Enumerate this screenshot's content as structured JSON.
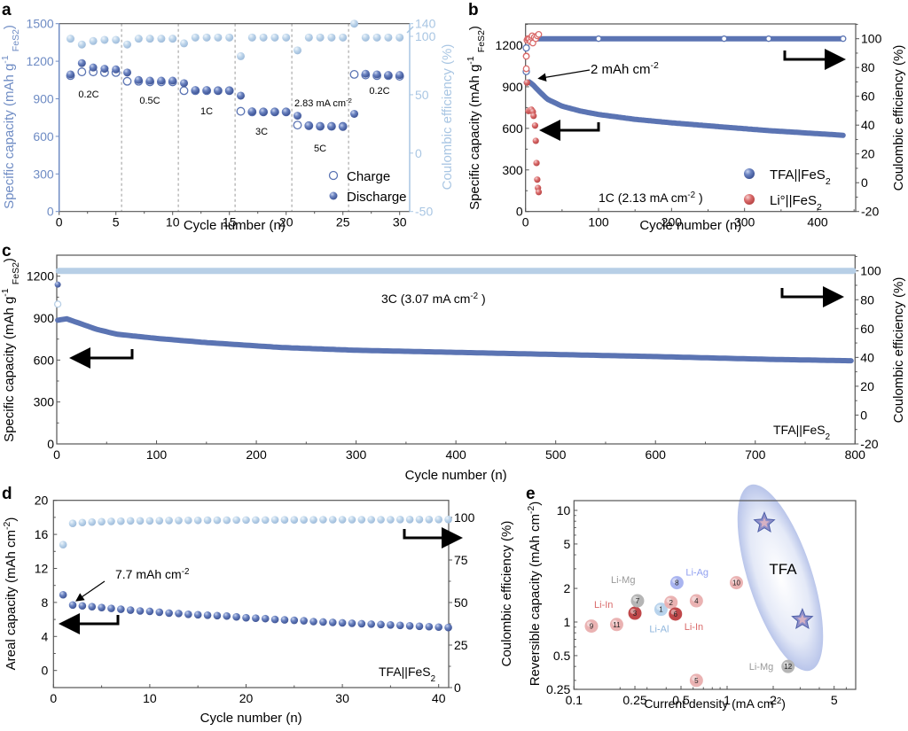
{
  "colors": {
    "dark_blue": "#5b74b3",
    "light_blue": "#b7cfe6",
    "red": "#d96a6a",
    "axis": "#555555",
    "left_axis_a": "#6f8cc4",
    "right_axis_a": "#a9c6e3"
  },
  "chart_data": [
    {
      "panel": "a",
      "type": "scatter",
      "xlabel": "Cycle number (n)",
      "ylabel": "Specific capacity (mAh g-1 FeS2)",
      "ylabel_main": "Specific capacity (mAh g",
      "ylabel_sup": "-1",
      "ylabel_sub": "FeS",
      "ylabel_sub2": "2",
      "ylabel_end": ")",
      "y2label": "Coulombic efficiency (%)",
      "xlim": [
        0,
        31
      ],
      "ylim": [
        0,
        1500
      ],
      "y2ticks": [
        "-50",
        "0",
        "50",
        "100",
        "140"
      ],
      "xticks": [
        "0",
        "5",
        "10",
        "15",
        "20",
        "25",
        "30"
      ],
      "yticks": [
        "0",
        "300",
        "600",
        "900",
        "1200",
        "1500"
      ],
      "rate_labels": [
        "0.2C",
        "0.5C",
        "1C",
        "3C",
        "2.83 mA cm",
        "5C",
        "0.2C"
      ],
      "rate_label_sup": "-2",
      "dividers": [
        5.5,
        10.5,
        15.5,
        20.5,
        25.5
      ],
      "legend": [
        "Charge",
        "Discharge"
      ],
      "cycles": [
        1,
        2,
        3,
        4,
        5,
        6,
        7,
        8,
        9,
        10,
        11,
        12,
        13,
        14,
        15,
        16,
        17,
        18,
        19,
        20,
        21,
        22,
        23,
        24,
        25,
        26,
        27,
        28,
        29,
        30
      ],
      "charge": [
        1085,
        1115,
        1115,
        1110,
        1110,
        1040,
        1040,
        1035,
        1035,
        1035,
        965,
        965,
        965,
        965,
        965,
        800,
        795,
        795,
        795,
        795,
        690,
        685,
        680,
        680,
        680,
        1095,
        1090,
        1085,
        1085,
        1080
      ],
      "discharge": [
        1095,
        1185,
        1150,
        1140,
        1135,
        1110,
        1050,
        1045,
        1045,
        1045,
        1025,
        970,
        970,
        965,
        965,
        925,
        800,
        795,
        795,
        795,
        765,
        685,
        680,
        680,
        675,
        780,
        1100,
        1095,
        1090,
        1090
      ],
      "coulombic_efficiency": [
        98,
        93,
        96,
        97,
        97,
        93,
        98,
        98,
        98,
        98,
        94,
        99,
        99,
        99,
        99,
        83,
        99,
        99,
        99,
        99,
        88,
        99,
        99,
        99,
        99,
        140,
        99,
        99,
        99,
        99
      ]
    },
    {
      "panel": "b",
      "type": "scatter",
      "xlabel": "Cycle number (n)",
      "ylabel": "Specific capacity (mAh g-1 FeS2)",
      "y2label": "Coulombic efficiency (%)",
      "xlim": [
        0,
        452
      ],
      "ylim": [
        0,
        1345
      ],
      "y2lim": [
        -20,
        110
      ],
      "xticks": [
        "0",
        "100",
        "200",
        "300",
        "400"
      ],
      "yticks": [
        "0",
        "300",
        "600",
        "900",
        "1200"
      ],
      "y2ticks": [
        "-20",
        "0",
        "20",
        "40",
        "60",
        "80",
        "100"
      ],
      "annotation": "2 mAh cm",
      "annotation_sup": "-2",
      "condition": "1C (2.13 mA cm",
      "condition_sup": "-2",
      "condition_end": " )",
      "series": [
        {
          "name": "TFA||FeS2",
          "label": "TFA||FeS",
          "label_sub": "2",
          "capacity_x": [
            1,
            5,
            10,
            20,
            30,
            50,
            75,
            100,
            150,
            200,
            270,
            330,
            435
          ],
          "capacity_y": [
            930,
            935,
            915,
            860,
            810,
            760,
            725,
            700,
            665,
            640,
            610,
            585,
            550
          ],
          "ce_y": 100
        },
        {
          "name": "Li°||FeS2",
          "label": "Li°||FeS",
          "label_sub": "2",
          "capacity_x": [
            2,
            4,
            6,
            8,
            10,
            11,
            13,
            14,
            15,
            16,
            17,
            18
          ],
          "capacity_y": [
            930,
            725,
            730,
            735,
            720,
            690,
            620,
            510,
            350,
            230,
            170,
            140
          ],
          "ce_x": [
            1,
            2,
            3,
            4,
            5,
            7,
            8,
            9,
            10,
            12,
            14,
            16,
            18
          ],
          "ce_y": [
            88,
            99,
            100,
            100,
            100,
            98,
            101,
            102,
            97,
            101,
            100,
            102,
            103
          ]
        }
      ]
    },
    {
      "panel": "c",
      "type": "scatter",
      "xlabel": "Cycle number (n)",
      "ylabel": "Specific capacity (mAh g-1 FeS2)",
      "y2label": "Coulombic efficiency (%)",
      "xlim": [
        0,
        800
      ],
      "ylim": [
        0,
        1340
      ],
      "y2lim": [
        -20,
        110
      ],
      "xticks": [
        "0",
        "100",
        "200",
        "300",
        "400",
        "500",
        "600",
        "700",
        "800"
      ],
      "yticks": [
        "0",
        "300",
        "600",
        "900",
        "1200"
      ],
      "y2ticks": [
        "-20",
        "0",
        "20",
        "40",
        "60",
        "80",
        "100"
      ],
      "condition": "3C (3.07 mA cm",
      "condition_sup": "-2",
      "condition_end": " )",
      "cell_label": "TFA||FeS",
      "cell_label_sub": "2",
      "capacity_x": [
        1,
        5,
        10,
        20,
        40,
        60,
        100,
        150,
        225,
        300,
        400,
        500,
        600,
        715,
        795
      ],
      "capacity_y": [
        885,
        890,
        895,
        870,
        820,
        785,
        755,
        725,
        690,
        670,
        655,
        640,
        625,
        605,
        595
      ],
      "first_points": [
        1140,
        1000
      ],
      "ce_y": 100
    },
    {
      "panel": "d",
      "type": "scatter",
      "xlabel": "Cycle number (n)",
      "ylabel": "Areal capacity (mAh cm-2)",
      "y2label": "Coulombic efficiency (%)",
      "xlim": [
        0,
        41
      ],
      "ylim": [
        -2,
        20
      ],
      "y2lim": [
        0,
        105
      ],
      "xticks": [
        "0",
        "10",
        "20",
        "30",
        "40"
      ],
      "yticks": [
        "0",
        "4",
        "8",
        "12",
        "16",
        "20"
      ],
      "y2ticks": [
        "0",
        "25",
        "50",
        "75",
        "100"
      ],
      "annotation": "7.7 mAh cm",
      "annotation_sup": "-2",
      "cell_label": "TFA||FeS",
      "cell_label_sub": "2",
      "cycles": [
        1,
        2,
        3,
        4,
        5,
        6,
        7,
        8,
        9,
        10,
        11,
        12,
        13,
        14,
        15,
        16,
        17,
        18,
        19,
        20,
        21,
        22,
        23,
        24,
        25,
        26,
        27,
        28,
        29,
        30,
        31,
        32,
        33,
        34,
        35,
        36,
        37,
        38,
        39,
        40,
        41
      ],
      "areal_capacity": [
        8.9,
        7.7,
        7.6,
        7.5,
        7.4,
        7.3,
        7.2,
        7.1,
        7.0,
        6.95,
        6.85,
        6.75,
        6.7,
        6.6,
        6.55,
        6.5,
        6.45,
        6.4,
        6.3,
        6.2,
        6.15,
        6.1,
        6.0,
        5.95,
        5.9,
        5.85,
        5.75,
        5.7,
        5.65,
        5.6,
        5.55,
        5.5,
        5.45,
        5.4,
        5.35,
        5.3,
        5.25,
        5.2,
        5.15,
        5.1,
        5.05
      ],
      "coulombic_efficiency": [
        84,
        96.5,
        97,
        97.3,
        97.5,
        97.7,
        97.8,
        98,
        98,
        98,
        98.1,
        98.2,
        98.2,
        98.3,
        98.3,
        98.4,
        98.4,
        98.4,
        98.5,
        98.5,
        98.5,
        98.5,
        98.6,
        98.6,
        98.6,
        98.6,
        98.6,
        98.7,
        98.7,
        98.7,
        98.7,
        98.7,
        98.7,
        98.7,
        98.7,
        98.8,
        98.8,
        98.8,
        98.8,
        98.8,
        98.8
      ]
    },
    {
      "panel": "e",
      "type": "scatter",
      "scale": "log-log",
      "xlabel": "Current density (mA cm",
      "xlabel_sup": "-2",
      "xlabel_end": ")",
      "ylabel": "Reversible capacity (mAh cm",
      "ylabel_sup": "-2",
      "ylabel_end": ")",
      "xlim": [
        0.1,
        6.9
      ],
      "ylim": [
        0.25,
        12
      ],
      "xticks": [
        "0.1",
        "0.25",
        "0.5",
        "1",
        "2",
        "5"
      ],
      "yticks": [
        "0.25",
        "0.5",
        "1",
        "2",
        "5",
        "10"
      ],
      "group_label": "TFA",
      "points": [
        {
          "id": "1",
          "x": 0.37,
          "y": 1.3,
          "color": "#b8d3ec",
          "label": "Li-Al",
          "label_color": "#8fb6dd"
        },
        {
          "id": "2",
          "x": 0.43,
          "y": 1.5,
          "color": "#eab2b2",
          "label": "",
          "label_color": ""
        },
        {
          "id": "3",
          "x": 0.25,
          "y": 1.2,
          "color": "#c0484a",
          "label": "Li-In",
          "label_color": "#d96a6a"
        },
        {
          "id": "4",
          "x": 0.63,
          "y": 1.55,
          "color": "#eab2b2",
          "label": "",
          "label_color": ""
        },
        {
          "id": "5",
          "x": 0.63,
          "y": 0.3,
          "color": "#eab2b2",
          "label": "",
          "label_color": ""
        },
        {
          "id": "6",
          "x": 0.46,
          "y": 1.18,
          "color": "#c0484a",
          "label": "Li-In",
          "label_color": "#d96a6a"
        },
        {
          "id": "7",
          "x": 0.26,
          "y": 1.55,
          "color": "#b5b5b5",
          "label": "Li-Mg",
          "label_color": "#999999"
        },
        {
          "id": "8",
          "x": 0.47,
          "y": 2.25,
          "color": "#a9b4f0",
          "label": "Li-Ag",
          "label_color": "#8f9ff0"
        },
        {
          "id": "9",
          "x": 0.13,
          "y": 0.92,
          "color": "#eab2b2",
          "label": "",
          "label_color": ""
        },
        {
          "id": "10",
          "x": 1.15,
          "y": 2.25,
          "color": "#eab2b2",
          "label": "",
          "label_color": ""
        },
        {
          "id": "11",
          "x": 0.19,
          "y": 0.95,
          "color": "#eab2b2",
          "label": "",
          "label_color": ""
        },
        {
          "id": "12",
          "x": 2.5,
          "y": 0.4,
          "color": "#b5b5b5",
          "label": "Li-Mg",
          "label_color": "#999999"
        }
      ],
      "stars": [
        {
          "x": 1.75,
          "y": 7.7
        },
        {
          "x": 3.1,
          "y": 1.05
        }
      ]
    }
  ],
  "panel_letters": [
    "a",
    "b",
    "c",
    "d",
    "e"
  ]
}
